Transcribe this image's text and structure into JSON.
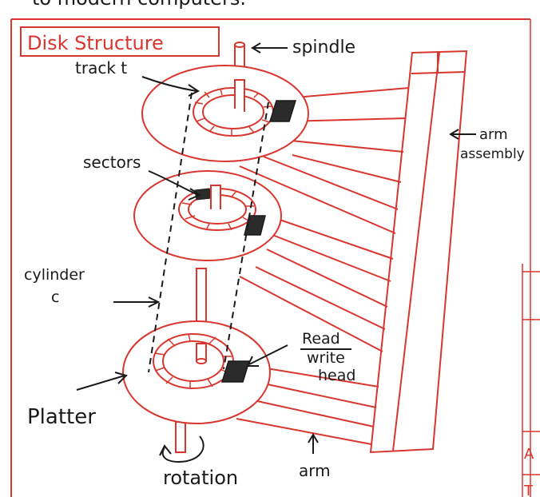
{
  "top_text": "to modern computers.",
  "title": "Disk Structure",
  "labels": {
    "spindle": "spindle",
    "track": "track t",
    "sectors": "sectors",
    "arm_assembly_1": "arm",
    "arm_assembly_2": "assembly",
    "cylinder_1": "cylinder",
    "cylinder_2": "c",
    "read_1": "Read",
    "read_2": "write",
    "read_3": "head",
    "platter": "Platter",
    "rotation": "rotation",
    "arm": "arm"
  },
  "right_edge_letters": [
    "A",
    "T"
  ],
  "colors": {
    "red": "#d9362f",
    "ink": "#1a1a1a",
    "paper": "#ffffff"
  }
}
